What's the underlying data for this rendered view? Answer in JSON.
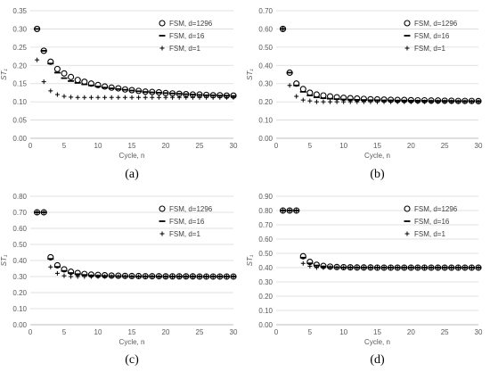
{
  "chart_data": [
    {
      "type": "scatter",
      "label": "(a)",
      "xlabel": "Cycle, n",
      "ylabel": "ST₁",
      "xlim": [
        0,
        30
      ],
      "ylim": [
        0,
        0.35
      ],
      "xticks": [
        0,
        5,
        10,
        15,
        20,
        25,
        30
      ],
      "yticks": [
        0.0,
        0.05,
        0.1,
        0.15,
        0.2,
        0.25,
        0.3,
        0.35
      ],
      "ytick_labels": [
        "0.00",
        "0.05",
        "0.10",
        "0.15",
        "0.20",
        "0.25",
        "0.30",
        "0.35"
      ],
      "grid": "horizontal",
      "legend_position": "top-right",
      "x": [
        1,
        2,
        3,
        4,
        5,
        6,
        7,
        8,
        9,
        10,
        11,
        12,
        13,
        14,
        15,
        16,
        17,
        18,
        19,
        20,
        21,
        22,
        23,
        24,
        25,
        26,
        27,
        28,
        29,
        30
      ],
      "series": [
        {
          "name": "FSM, d=1296",
          "marker": "circle",
          "values": [
            0.3,
            0.24,
            0.21,
            0.19,
            0.178,
            0.168,
            0.16,
            0.155,
            0.15,
            0.146,
            0.142,
            0.139,
            0.137,
            0.134,
            0.132,
            0.13,
            0.128,
            0.127,
            0.126,
            0.124,
            0.123,
            0.122,
            0.121,
            0.12,
            0.12,
            0.119,
            0.118,
            0.118,
            0.117,
            0.117
          ]
        },
        {
          "name": "FSM, d=16",
          "marker": "dash",
          "values": [
            0.3,
            0.24,
            0.205,
            0.18,
            0.165,
            0.157,
            0.152,
            0.148,
            0.145,
            0.142,
            0.139,
            0.137,
            0.135,
            0.133,
            0.131,
            0.129,
            0.127,
            0.126,
            0.125,
            0.124,
            0.123,
            0.122,
            0.121,
            0.12,
            0.119,
            0.118,
            0.118,
            0.117,
            0.117,
            0.116
          ]
        },
        {
          "name": "FSM, d=1",
          "marker": "plus",
          "values": [
            0.215,
            0.155,
            0.13,
            0.12,
            0.115,
            0.113,
            0.112,
            0.112,
            0.112,
            0.112,
            0.112,
            0.112,
            0.112,
            0.112,
            0.112,
            0.112,
            0.112,
            0.112,
            0.112,
            0.112,
            0.112,
            0.112,
            0.112,
            0.112,
            0.112,
            0.112,
            0.112,
            0.112,
            0.112,
            0.112
          ]
        }
      ]
    },
    {
      "type": "scatter",
      "label": "(b)",
      "xlabel": "Cycle, n",
      "ylabel": "ST₁",
      "xlim": [
        0,
        30
      ],
      "ylim": [
        0,
        0.7
      ],
      "xticks": [
        0,
        5,
        10,
        15,
        20,
        25,
        30
      ],
      "yticks": [
        0.0,
        0.1,
        0.2,
        0.3,
        0.4,
        0.5,
        0.6,
        0.7
      ],
      "ytick_labels": [
        "0.00",
        "0.10",
        "0.20",
        "0.30",
        "0.40",
        "0.50",
        "0.60",
        "0.70"
      ],
      "grid": "horizontal",
      "legend_position": "top-right",
      "x": [
        1,
        2,
        3,
        4,
        5,
        6,
        7,
        8,
        9,
        10,
        11,
        12,
        13,
        14,
        15,
        16,
        17,
        18,
        19,
        20,
        21,
        22,
        23,
        24,
        25,
        26,
        27,
        28,
        29,
        30
      ],
      "series": [
        {
          "name": "FSM, d=1296",
          "marker": "circle",
          "values": [
            0.6,
            0.36,
            0.3,
            0.27,
            0.25,
            0.24,
            0.235,
            0.23,
            0.225,
            0.222,
            0.22,
            0.218,
            0.216,
            0.214,
            0.213,
            0.212,
            0.211,
            0.21,
            0.21,
            0.209,
            0.208,
            0.208,
            0.207,
            0.207,
            0.206,
            0.206,
            0.205,
            0.205,
            0.205,
            0.204
          ]
        },
        {
          "name": "FSM, d=16",
          "marker": "dash",
          "values": [
            0.6,
            0.36,
            0.29,
            0.255,
            0.235,
            0.225,
            0.22,
            0.217,
            0.215,
            0.213,
            0.212,
            0.211,
            0.21,
            0.209,
            0.209,
            0.208,
            0.208,
            0.207,
            0.207,
            0.206,
            0.206,
            0.206,
            0.205,
            0.205,
            0.205,
            0.205,
            0.204,
            0.204,
            0.204,
            0.204
          ]
        },
        {
          "name": "FSM, d=1",
          "marker": "plus",
          "values": [
            0.6,
            0.29,
            0.23,
            0.21,
            0.205,
            0.2,
            0.2,
            0.2,
            0.2,
            0.2,
            0.2,
            0.2,
            0.2,
            0.2,
            0.2,
            0.2,
            0.2,
            0.2,
            0.2,
            0.2,
            0.2,
            0.2,
            0.2,
            0.2,
            0.2,
            0.2,
            0.2,
            0.2,
            0.2,
            0.2
          ]
        }
      ]
    },
    {
      "type": "scatter",
      "label": "(c)",
      "xlabel": "Cycle, n",
      "ylabel": "ST₁",
      "xlim": [
        0,
        30
      ],
      "ylim": [
        0,
        0.8
      ],
      "xticks": [
        0,
        5,
        10,
        15,
        20,
        25,
        30
      ],
      "yticks": [
        0.0,
        0.1,
        0.2,
        0.3,
        0.4,
        0.5,
        0.6,
        0.7,
        0.8
      ],
      "ytick_labels": [
        "0.00",
        "0.10",
        "0.20",
        "0.30",
        "0.40",
        "0.50",
        "0.60",
        "0.70",
        "0.80"
      ],
      "grid": "horizontal",
      "legend_position": "top-right",
      "x": [
        1,
        2,
        3,
        4,
        5,
        6,
        7,
        8,
        9,
        10,
        11,
        12,
        13,
        14,
        15,
        16,
        17,
        18,
        19,
        20,
        21,
        22,
        23,
        24,
        25,
        26,
        27,
        28,
        29,
        30
      ],
      "series": [
        {
          "name": "FSM, d=1296",
          "marker": "circle",
          "values": [
            0.7,
            0.7,
            0.42,
            0.37,
            0.345,
            0.33,
            0.322,
            0.316,
            0.312,
            0.31,
            0.308,
            0.306,
            0.305,
            0.304,
            0.303,
            0.303,
            0.302,
            0.302,
            0.302,
            0.301,
            0.301,
            0.301,
            0.301,
            0.301,
            0.3,
            0.3,
            0.3,
            0.3,
            0.3,
            0.3
          ]
        },
        {
          "name": "FSM, d=16",
          "marker": "dash",
          "values": [
            0.7,
            0.7,
            0.41,
            0.36,
            0.335,
            0.322,
            0.315,
            0.31,
            0.307,
            0.305,
            0.304,
            0.303,
            0.302,
            0.302,
            0.301,
            0.301,
            0.301,
            0.301,
            0.3,
            0.3,
            0.3,
            0.3,
            0.3,
            0.3,
            0.3,
            0.3,
            0.3,
            0.3,
            0.3,
            0.3
          ]
        },
        {
          "name": "FSM, d=1",
          "marker": "plus",
          "values": [
            0.7,
            0.7,
            0.36,
            0.32,
            0.305,
            0.3,
            0.3,
            0.3,
            0.3,
            0.3,
            0.3,
            0.3,
            0.3,
            0.3,
            0.3,
            0.3,
            0.3,
            0.3,
            0.3,
            0.3,
            0.3,
            0.3,
            0.3,
            0.3,
            0.3,
            0.3,
            0.3,
            0.3,
            0.3,
            0.3
          ]
        }
      ]
    },
    {
      "type": "scatter",
      "label": "(d)",
      "xlabel": "Cycle, n",
      "ylabel": "ST₁",
      "xlim": [
        0,
        30
      ],
      "ylim": [
        0,
        0.9
      ],
      "xticks": [
        0,
        5,
        10,
        15,
        20,
        25,
        30
      ],
      "yticks": [
        0.0,
        0.1,
        0.2,
        0.3,
        0.4,
        0.5,
        0.6,
        0.7,
        0.8,
        0.9
      ],
      "ytick_labels": [
        "0.00",
        "0.10",
        "0.20",
        "0.30",
        "0.40",
        "0.50",
        "0.60",
        "0.70",
        "0.80",
        "0.90"
      ],
      "grid": "horizontal",
      "legend_position": "top-right",
      "x": [
        1,
        2,
        3,
        4,
        5,
        6,
        7,
        8,
        9,
        10,
        11,
        12,
        13,
        14,
        15,
        16,
        17,
        18,
        19,
        20,
        21,
        22,
        23,
        24,
        25,
        26,
        27,
        28,
        29,
        30
      ],
      "series": [
        {
          "name": "FSM, d=1296",
          "marker": "circle",
          "values": [
            0.8,
            0.8,
            0.8,
            0.48,
            0.44,
            0.42,
            0.412,
            0.407,
            0.404,
            0.403,
            0.402,
            0.401,
            0.401,
            0.401,
            0.4,
            0.4,
            0.4,
            0.4,
            0.4,
            0.4,
            0.4,
            0.4,
            0.4,
            0.4,
            0.4,
            0.4,
            0.4,
            0.4,
            0.4,
            0.4
          ]
        },
        {
          "name": "FSM, d=16",
          "marker": "dash",
          "values": [
            0.8,
            0.8,
            0.8,
            0.47,
            0.43,
            0.415,
            0.408,
            0.404,
            0.402,
            0.401,
            0.401,
            0.4,
            0.4,
            0.4,
            0.4,
            0.4,
            0.4,
            0.4,
            0.4,
            0.4,
            0.4,
            0.4,
            0.4,
            0.4,
            0.4,
            0.4,
            0.4,
            0.4,
            0.4,
            0.4
          ]
        },
        {
          "name": "FSM, d=1",
          "marker": "plus",
          "values": [
            0.8,
            0.8,
            0.8,
            0.43,
            0.41,
            0.4,
            0.4,
            0.4,
            0.4,
            0.4,
            0.4,
            0.4,
            0.4,
            0.4,
            0.4,
            0.4,
            0.4,
            0.4,
            0.4,
            0.4,
            0.4,
            0.4,
            0.4,
            0.4,
            0.4,
            0.4,
            0.4,
            0.4,
            0.4,
            0.4
          ]
        }
      ]
    }
  ]
}
